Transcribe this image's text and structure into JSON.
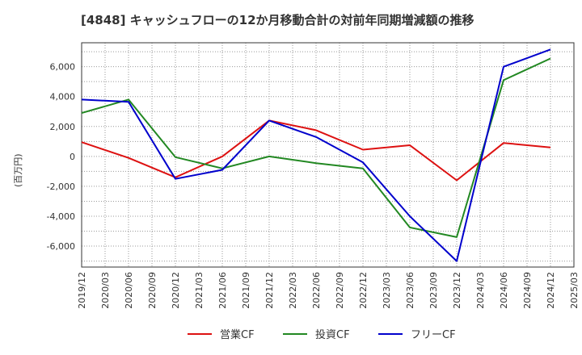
{
  "chart_data": {
    "type": "line",
    "title": "[4848]  キャッシュフローの12か月移動合計の対前年同期増減額の推移",
    "ylabel": "(百万円)",
    "xlabel": "",
    "ylim": [
      -7400,
      7600
    ],
    "yticks": [
      6000,
      4000,
      2000,
      0,
      -2000,
      -4000,
      -6000
    ],
    "ytick_labels": [
      "6,000",
      "4,000",
      "2,000",
      "0",
      "-2,000",
      "-4,000",
      "-6,000"
    ],
    "x": [
      "2019/12",
      "2020/03",
      "2020/06",
      "2020/09",
      "2020/12",
      "2021/03",
      "2021/06",
      "2021/09",
      "2021/12",
      "2022/03",
      "2022/06",
      "2022/09",
      "2022/12",
      "2023/03",
      "2023/06",
      "2023/09",
      "2023/12",
      "2024/03",
      "2024/06",
      "2024/09",
      "2024/12",
      "2025/03"
    ],
    "grid": true,
    "legend_position": "bottom",
    "series": [
      {
        "name": "営業CF",
        "color": "#dd1111",
        "values": [
          950,
          null,
          -100,
          null,
          -1400,
          null,
          0,
          null,
          2400,
          null,
          1750,
          null,
          450,
          null,
          750,
          null,
          -1600,
          null,
          900,
          null,
          600,
          null
        ]
      },
      {
        "name": "投資CF",
        "color": "#228822",
        "values": [
          2900,
          null,
          3800,
          null,
          -50,
          null,
          -800,
          null,
          0,
          null,
          -450,
          null,
          -800,
          null,
          -4750,
          null,
          -5400,
          null,
          5100,
          null,
          6550,
          null
        ]
      },
      {
        "name": "フリーCF",
        "color": "#0000cc",
        "values": [
          3800,
          null,
          3650,
          null,
          -1500,
          null,
          -900,
          null,
          2400,
          null,
          1300,
          null,
          -400,
          null,
          -4000,
          null,
          -7000,
          null,
          6000,
          null,
          7150,
          null
        ]
      }
    ]
  }
}
